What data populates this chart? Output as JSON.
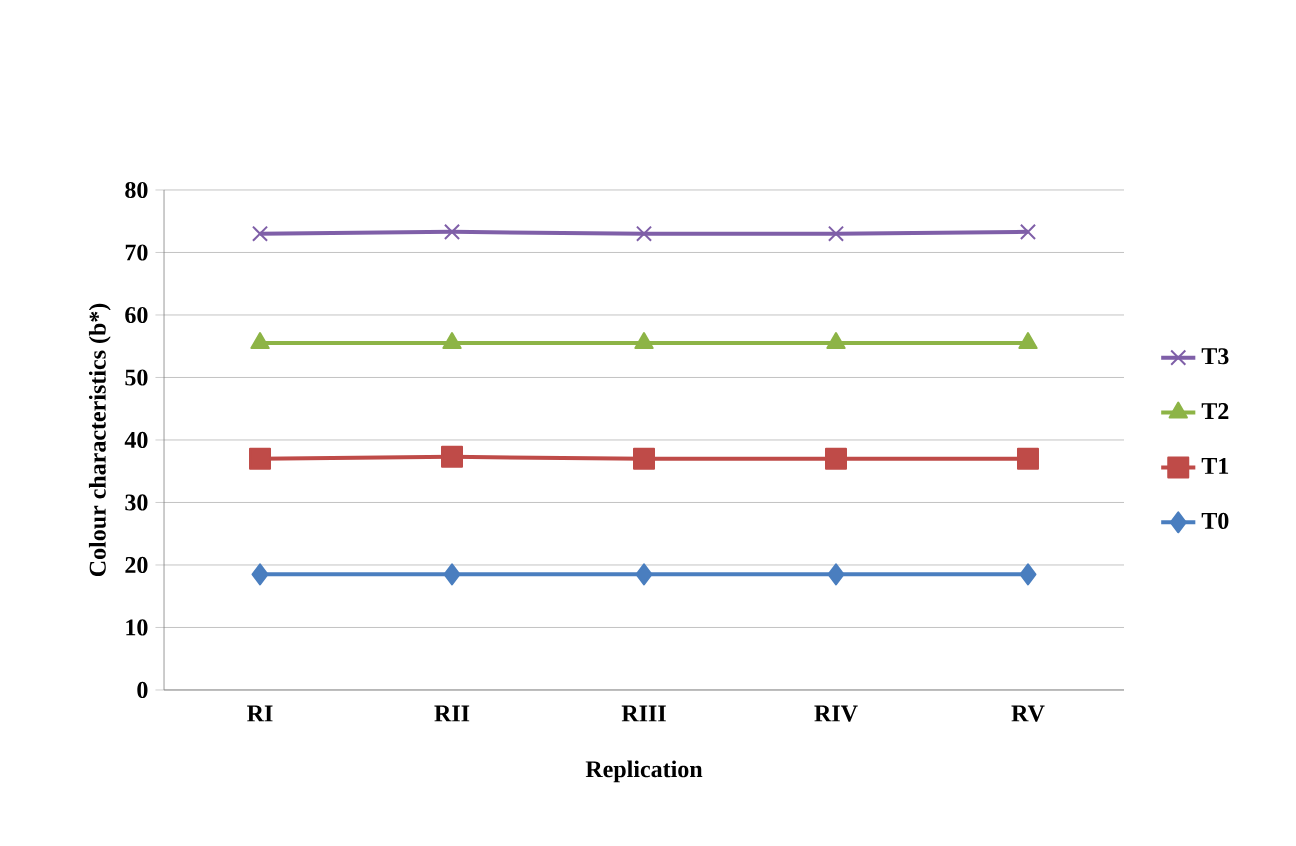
{
  "chart_data": {
    "type": "line",
    "xlabel": "Replication",
    "ylabel": "Colour characteristics (b*)",
    "categories": [
      "RI",
      "RII",
      "RIII",
      "RIV",
      "RV"
    ],
    "series": [
      {
        "name": "T3",
        "color": "#7f5fa8",
        "marker": "cross",
        "values": [
          73,
          73.3,
          73,
          73,
          73.3
        ]
      },
      {
        "name": "T2",
        "color": "#8db446",
        "marker": "triangle",
        "values": [
          55.5,
          55.5,
          55.5,
          55.5,
          55.5
        ]
      },
      {
        "name": "T1",
        "color": "#bf4b48",
        "marker": "square",
        "values": [
          37,
          37.3,
          37,
          37,
          37
        ]
      },
      {
        "name": "T0",
        "color": "#4a7ebf",
        "marker": "diamond",
        "values": [
          18.5,
          18.5,
          18.5,
          18.5,
          18.5
        ]
      }
    ],
    "ylim": [
      0,
      80
    ],
    "yticks": [
      0,
      10,
      20,
      30,
      40,
      50,
      60,
      70,
      80
    ],
    "grid": "y",
    "legend": "right",
    "line_style": "solid"
  }
}
